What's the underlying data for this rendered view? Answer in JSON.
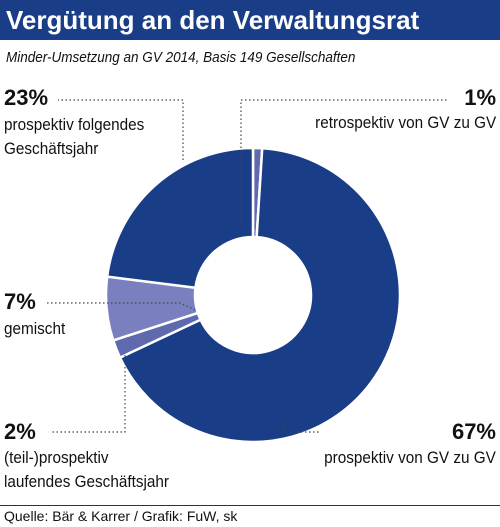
{
  "header": {
    "title": "Vergütung an den Verwaltungsrat",
    "subtitle": "Minder-Umsetzung an GV 2014, Basis 149 Gesellschaften"
  },
  "footer": {
    "source": "Quelle: Bär & Karrer / Grafik: FuW, sk"
  },
  "chart_data": {
    "type": "pie",
    "donut": true,
    "title": "Vergütung an den Verwaltungsrat",
    "subtitle": "Minder-Umsetzung an GV 2014, Basis 149 Gesellschaften",
    "slices": [
      {
        "label": "retrospektiv von GV zu GV",
        "value": 1,
        "value_label": "1%",
        "color": "#5e6aad",
        "line1": "retrospektiv von GV zu GV",
        "line2": ""
      },
      {
        "label": "prospektiv von GV zu GV",
        "value": 67,
        "value_label": "67%",
        "color": "#1a3d88",
        "line1": "prospektiv von GV zu GV",
        "line2": ""
      },
      {
        "label": "(teil-)prospektiv laufendes Geschäftsjahr",
        "value": 2,
        "value_label": "2%",
        "color": "#5e6aad",
        "line1": "(teil-)prospektiv",
        "line2": "laufendes Geschäftsjahr"
      },
      {
        "label": "gemischt",
        "value": 7,
        "value_label": "7%",
        "color": "#7a80bf",
        "line1": "gemischt",
        "line2": ""
      },
      {
        "label": "prospektiv folgendes Geschäftsjahr",
        "value": 23,
        "value_label": "23%",
        "color": "#1a3d88",
        "line1": "prospektiv folgendes",
        "line2": "Geschäftsjahr"
      }
    ]
  }
}
